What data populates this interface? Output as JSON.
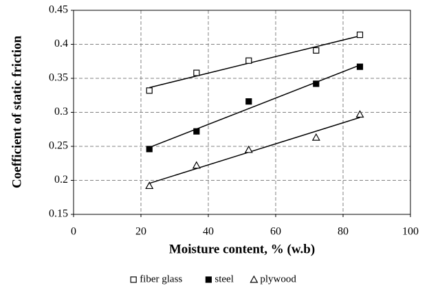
{
  "chart_data": {
    "type": "scatter",
    "x_label": "Moisture content, % (w.b)",
    "y_label": "Coefficient of static friction",
    "xlim": [
      0,
      100
    ],
    "xticks": [
      0,
      20,
      40,
      60,
      80,
      100
    ],
    "ylim": [
      0.15,
      0.45
    ],
    "yticks": [
      0.15,
      0.2,
      0.25,
      0.3,
      0.35,
      0.4,
      0.45
    ],
    "grid": true,
    "trendline": true,
    "legend": "bottom",
    "series": [
      {
        "name": "fiber glass",
        "color": "#000000",
        "marker": "square-open",
        "x": [
          22.5,
          36.5,
          52,
          72,
          85
        ],
        "values": [
          0.332,
          0.358,
          0.376,
          0.391,
          0.414
        ]
      },
      {
        "name": "steel",
        "color": "#000000",
        "marker": "square-filled",
        "x": [
          22.5,
          36.5,
          52,
          72,
          85
        ],
        "values": [
          0.246,
          0.272,
          0.316,
          0.342,
          0.367
        ]
      },
      {
        "name": "plywood",
        "color": "#000000",
        "marker": "triangle-open",
        "x": [
          22.5,
          36.5,
          52,
          72,
          85
        ],
        "values": [
          0.192,
          0.222,
          0.245,
          0.263,
          0.297
        ]
      }
    ]
  }
}
